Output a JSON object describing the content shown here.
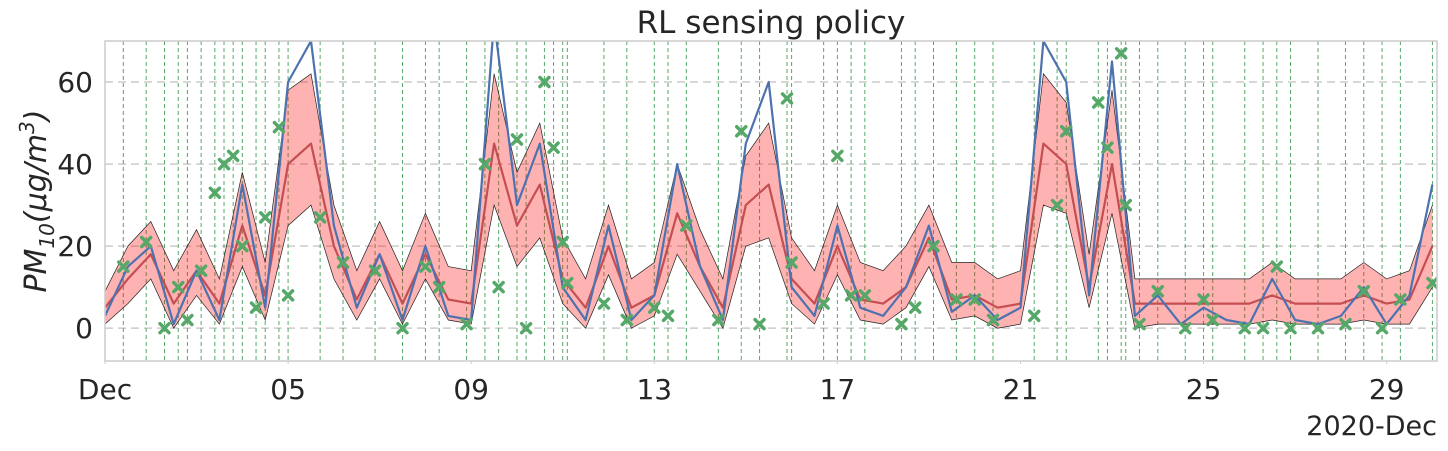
{
  "chart_data": {
    "type": "line",
    "title": "RL sensing policy",
    "ylabel": {
      "base": "PM",
      "sub": "10",
      "mid": "(μg/m",
      "sup": "3",
      "end": ")"
    },
    "x_offset_label": "2020-Dec",
    "x": [
      1,
      1.5,
      2,
      2.5,
      3,
      3.5,
      4,
      4.5,
      5,
      5.5,
      6,
      6.5,
      7,
      7.5,
      8,
      8.5,
      9,
      9.5,
      10,
      10.5,
      11,
      11.5,
      12,
      12.5,
      13,
      13.5,
      14,
      14.5,
      15,
      15.5,
      16,
      16.5,
      17,
      17.5,
      18,
      18.5,
      19,
      19.5,
      20,
      20.5,
      21,
      21.5,
      22,
      22.5,
      23,
      23.5,
      24,
      24.5,
      25,
      25.5,
      26,
      26.5,
      27,
      27.5,
      28,
      28.5,
      29,
      29.5,
      30
    ],
    "series": [
      {
        "color": "#4c72b0",
        "values": [
          3,
          15,
          20,
          1,
          14,
          2,
          35,
          5,
          60,
          70,
          25,
          5,
          18,
          2,
          20,
          3,
          2,
          75,
          30,
          45,
          10,
          2,
          25,
          2,
          8,
          40,
          15,
          2,
          45,
          60,
          10,
          3,
          25,
          5,
          3,
          10,
          25,
          4,
          8,
          2,
          5,
          70,
          60,
          8,
          65,
          3,
          8,
          1,
          5,
          2,
          1,
          12,
          2,
          1,
          3,
          10,
          1,
          8,
          35
        ]
      },
      {
        "color": "#c44e52",
        "values": [
          5,
          12,
          18,
          6,
          14,
          6,
          25,
          8,
          40,
          45,
          20,
          7,
          18,
          6,
          18,
          7,
          6,
          45,
          25,
          35,
          12,
          5,
          20,
          5,
          8,
          28,
          15,
          5,
          30,
          35,
          12,
          6,
          20,
          7,
          6,
          10,
          22,
          7,
          8,
          5,
          6,
          45,
          40,
          10,
          40,
          6,
          6,
          6,
          6,
          6,
          6,
          8,
          6,
          6,
          6,
          8,
          6,
          7,
          20
        ]
      }
    ],
    "band": {
      "color": "#ff0000",
      "lower": [
        1,
        6,
        12,
        0,
        8,
        1,
        15,
        2,
        25,
        30,
        12,
        2,
        12,
        1,
        12,
        2,
        1,
        30,
        15,
        22,
        6,
        0,
        13,
        0,
        3,
        18,
        9,
        0,
        20,
        22,
        6,
        1,
        13,
        2,
        1,
        5,
        15,
        2,
        3,
        0,
        1,
        30,
        28,
        5,
        28,
        0,
        1,
        1,
        1,
        1,
        1,
        2,
        1,
        1,
        1,
        2,
        1,
        1,
        10
      ],
      "upper": [
        9,
        20,
        26,
        14,
        24,
        12,
        38,
        16,
        58,
        62,
        30,
        14,
        26,
        14,
        28,
        15,
        14,
        62,
        38,
        50,
        22,
        12,
        30,
        12,
        16,
        40,
        24,
        12,
        42,
        50,
        22,
        14,
        30,
        16,
        14,
        20,
        30,
        16,
        16,
        12,
        14,
        62,
        55,
        18,
        58,
        12,
        12,
        12,
        12,
        12,
        12,
        16,
        12,
        12,
        12,
        16,
        12,
        14,
        30
      ]
    },
    "sensed": {
      "color": "#55a868",
      "x": [
        1.4,
        1.9,
        2.3,
        2.6,
        2.8,
        3.1,
        3.4,
        3.6,
        3.8,
        4.0,
        4.3,
        4.5,
        4.8,
        5.0,
        5.7,
        6.2,
        6.9,
        7.5,
        8.0,
        8.3,
        8.9,
        9.3,
        9.6,
        10.0,
        10.2,
        10.6,
        10.8,
        11.0,
        11.1,
        11.9,
        12.4,
        13.0,
        13.3,
        13.7,
        14.4,
        14.9,
        15.3,
        15.9,
        16.0,
        16.7,
        17.0,
        17.3,
        17.6,
        18.4,
        18.7,
        19.1,
        19.6,
        20.0,
        20.4,
        21.3,
        21.8,
        22.0,
        22.7,
        22.9,
        23.2,
        23.3,
        23.6,
        24.0,
        24.6,
        25.0,
        25.2,
        25.9,
        26.3,
        26.6,
        26.9,
        27.5,
        28.1,
        28.5,
        28.9,
        29.3,
        30.0
      ],
      "values": [
        15,
        21,
        0,
        10,
        2,
        14,
        33,
        40,
        42,
        20,
        5,
        27,
        49,
        8,
        27,
        16,
        14,
        0,
        15,
        10,
        1,
        40,
        10,
        46,
        0,
        60,
        44,
        21,
        11,
        6,
        2,
        5,
        3,
        25,
        2,
        48,
        1,
        56,
        16,
        6,
        42,
        8,
        8,
        1,
        5,
        20,
        7,
        7,
        2,
        3,
        30,
        48,
        55,
        44,
        67,
        30,
        1,
        9,
        0,
        7,
        2,
        0,
        0,
        15,
        0,
        0,
        1,
        9,
        0,
        7,
        11
      ]
    },
    "xlim": [
      1,
      30.1
    ],
    "xticks": [
      {
        "value": 1,
        "label": "Dec"
      },
      {
        "value": 5,
        "label": "05"
      },
      {
        "value": 9,
        "label": "09"
      },
      {
        "value": 13,
        "label": "13"
      },
      {
        "value": 17,
        "label": "17"
      },
      {
        "value": 21,
        "label": "21"
      },
      {
        "value": 25,
        "label": "25"
      },
      {
        "value": 29,
        "label": "29"
      }
    ],
    "ylim": [
      -8,
      70
    ],
    "yticks": [
      0,
      20,
      40,
      60
    ],
    "grid": true
  }
}
